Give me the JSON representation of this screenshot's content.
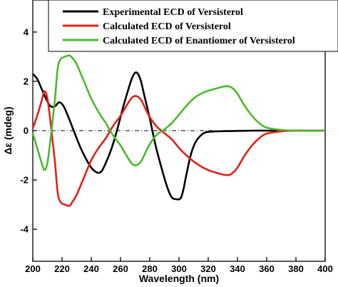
{
  "chart_data": {
    "type": "line",
    "title": "",
    "xlabel": "Wavelength (nm)",
    "ylabel": "Δε (mdeg)",
    "xlim": [
      200,
      400
    ],
    "ylim": [
      -5.3,
      5.3
    ],
    "x_ticks": [
      200,
      220,
      240,
      260,
      280,
      300,
      320,
      340,
      360,
      380,
      400
    ],
    "y_ticks": [
      -4,
      -2,
      0,
      2,
      4
    ],
    "legend_position": "top-right",
    "zero_line": true,
    "series": [
      {
        "name": "Experimental ECD of Versisterol",
        "color": "#000000",
        "x": [
          200,
          203,
          206,
          209,
          212,
          215,
          218,
          221,
          224,
          228,
          232,
          236,
          240,
          244,
          247,
          250,
          254,
          258,
          262,
          266,
          268,
          270,
          272,
          274,
          276,
          280,
          284,
          288,
          292,
          295,
          298,
          301,
          303,
          305,
          308,
          311,
          314,
          317,
          320,
          325,
          330,
          340,
          350,
          360,
          380,
          400
        ],
        "y": [
          2.3,
          2.1,
          1.7,
          1.3,
          1.0,
          0.98,
          1.15,
          1.0,
          0.6,
          0.0,
          -0.6,
          -1.1,
          -1.5,
          -1.7,
          -1.65,
          -1.3,
          -0.7,
          0.1,
          1.0,
          1.8,
          2.15,
          2.35,
          2.3,
          2.0,
          1.5,
          0.5,
          -0.6,
          -1.5,
          -2.3,
          -2.7,
          -2.78,
          -2.75,
          -2.4,
          -1.8,
          -1.0,
          -0.5,
          -0.25,
          -0.1,
          -0.05,
          -0.03,
          -0.02,
          -0.01,
          0.0,
          0.0,
          0.0,
          0.0
        ]
      },
      {
        "name": "Calculated ECD of Versisterol",
        "color": "#e0201a",
        "x": [
          200,
          203,
          206,
          208,
          210,
          212,
          215,
          217,
          219,
          222,
          225,
          227,
          230,
          235,
          240,
          245,
          250,
          255,
          260,
          265,
          268,
          271,
          274,
          277,
          280,
          285,
          290,
          295,
          300,
          305,
          310,
          315,
          320,
          325,
          330,
          334,
          337,
          340,
          345,
          350,
          355,
          360,
          370,
          380,
          390,
          400
        ],
        "y": [
          0.1,
          0.6,
          1.2,
          1.6,
          1.3,
          0.4,
          -1.2,
          -2.5,
          -2.9,
          -3.0,
          -3.05,
          -2.9,
          -2.6,
          -1.9,
          -1.2,
          -0.7,
          -0.3,
          0.2,
          0.6,
          1.1,
          1.35,
          1.4,
          1.25,
          0.9,
          0.55,
          0.15,
          -0.1,
          -0.35,
          -0.7,
          -1.0,
          -1.25,
          -1.45,
          -1.6,
          -1.7,
          -1.78,
          -1.8,
          -1.7,
          -1.5,
          -1.0,
          -0.6,
          -0.3,
          -0.12,
          -0.03,
          0.0,
          0.0,
          0.0
        ]
      },
      {
        "name": "Calculated ECD of Enantiomer of Versisterol",
        "color": "#4cb82d",
        "x": [
          200,
          203,
          206,
          208,
          210,
          212,
          215,
          217,
          219,
          222,
          225,
          227,
          230,
          235,
          240,
          245,
          250,
          255,
          260,
          265,
          268,
          271,
          274,
          277,
          280,
          285,
          290,
          295,
          300,
          305,
          310,
          315,
          320,
          325,
          330,
          334,
          337,
          340,
          345,
          350,
          355,
          360,
          370,
          380,
          390,
          400
        ],
        "y": [
          -0.1,
          -0.7,
          -1.3,
          -1.6,
          -1.3,
          -0.4,
          1.2,
          2.5,
          2.9,
          3.0,
          3.05,
          2.95,
          2.7,
          2.0,
          1.3,
          0.75,
          0.3,
          -0.2,
          -0.6,
          -1.1,
          -1.35,
          -1.4,
          -1.25,
          -0.9,
          -0.55,
          -0.15,
          0.05,
          0.3,
          0.65,
          1.0,
          1.3,
          1.5,
          1.62,
          1.7,
          1.78,
          1.8,
          1.7,
          1.5,
          1.0,
          0.6,
          0.3,
          0.12,
          0.03,
          0.0,
          0.0,
          0.0
        ]
      }
    ]
  }
}
